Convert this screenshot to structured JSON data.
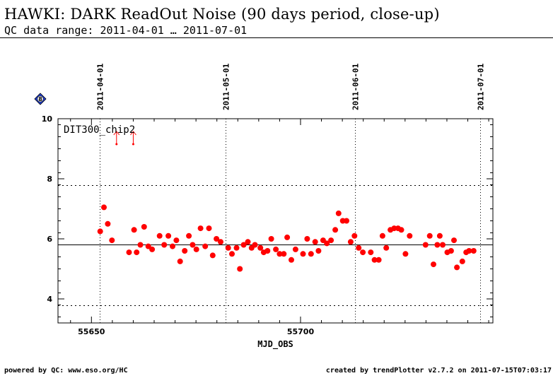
{
  "header": {
    "title": "HAWKI: DARK ReadOut Noise (90 days period, close-up)",
    "subtitle": "QC data range: 2011-04-01 … 2011-07-01"
  },
  "footer": {
    "left": "powered by QC: www.eso.org/HC",
    "right": "created by trendPlotter v2.7.2 on 2011-07-15T07:03:17"
  },
  "colors": {
    "points": "#ff0000",
    "lines": "#000000",
    "badge_fill": "#1f3fd8"
  },
  "icon": {
    "badge": "diamond-badge-icon",
    "badge_text": "8"
  },
  "chart_data": {
    "type": "scatter",
    "title": "",
    "xlabel": "MJD_OBS",
    "ylabel": "",
    "panel_label": "DIT300_chip2",
    "xlim": [
      55642,
      55746
    ],
    "ylim": [
      3.2,
      10
    ],
    "x_ticks": [
      55650,
      55700
    ],
    "y_ticks": [
      4,
      6,
      8,
      10
    ],
    "grid": false,
    "reference_lines": {
      "mean": 5.8,
      "upper_limit": 7.8,
      "lower_limit": 3.8
    },
    "date_markers": [
      {
        "label": "2011-04-01",
        "mjd": 55652
      },
      {
        "label": "2011-05-01",
        "mjd": 55682
      },
      {
        "label": "2011-06-01",
        "mjd": 55713
      },
      {
        "label": "2011-07-01",
        "mjd": 55743
      }
    ],
    "outliers_above": [
      55656,
      55660
    ],
    "series": [
      {
        "name": "",
        "x": [
          55652.1,
          55653.0,
          55653.9,
          55654.9,
          55659.0,
          55660.2,
          55660.8,
          55661.7,
          55662.6,
          55663.6,
          55664.5,
          55666.3,
          55667.4,
          55668.4,
          55669.4,
          55670.3,
          55671.2,
          55672.3,
          55673.3,
          55674.2,
          55675.1,
          55676.1,
          55677.2,
          55678.1,
          55679.0,
          55679.9,
          55680.9,
          55682.7,
          55683.6,
          55684.7,
          55685.5,
          55686.4,
          55687.4,
          55688.3,
          55689.1,
          55690.4,
          55691.2,
          55692.1,
          55693.0,
          55694.1,
          55695.0,
          55696.0,
          55696.8,
          55697.8,
          55698.8,
          55700.6,
          55701.6,
          55702.5,
          55703.5,
          55704.3,
          55705.4,
          55706.3,
          55707.3,
          55708.3,
          55709.1,
          55710.1,
          55711.0,
          55712.0,
          55712.9,
          55713.9,
          55714.9,
          55716.8,
          55717.7,
          55718.7,
          55719.6,
          55720.5,
          55721.5,
          55722.4,
          55723.3,
          55724.1,
          55725.1,
          55726.1,
          55729.9,
          55730.9,
          55731.8,
          55732.7,
          55733.3,
          55734.0,
          55735.1,
          55736.0,
          55736.7,
          55737.4,
          55738.7,
          55739.6,
          55740.3,
          55741.4
        ],
        "y": [
          6.25,
          7.05,
          6.5,
          5.95,
          5.55,
          6.3,
          5.55,
          5.8,
          6.4,
          5.75,
          5.65,
          6.1,
          5.8,
          6.1,
          5.75,
          5.95,
          5.25,
          5.6,
          6.1,
          5.8,
          5.65,
          6.35,
          5.75,
          6.35,
          5.45,
          6.0,
          5.9,
          5.7,
          5.5,
          5.7,
          5.0,
          5.8,
          5.9,
          5.7,
          5.8,
          5.7,
          5.55,
          5.6,
          6.0,
          5.65,
          5.5,
          5.5,
          6.05,
          5.3,
          5.65,
          5.5,
          6.0,
          5.5,
          5.9,
          5.6,
          5.95,
          5.85,
          5.95,
          6.3,
          6.85,
          6.6,
          6.6,
          5.9,
          6.1,
          5.7,
          5.55,
          5.55,
          5.3,
          5.3,
          6.1,
          5.7,
          6.3,
          6.35,
          6.35,
          6.3,
          5.5,
          6.1,
          5.8,
          6.1,
          5.15,
          5.8,
          6.1,
          5.8,
          5.55,
          5.6,
          5.95,
          5.05,
          5.25,
          5.55,
          5.6,
          5.6
        ]
      }
    ]
  }
}
